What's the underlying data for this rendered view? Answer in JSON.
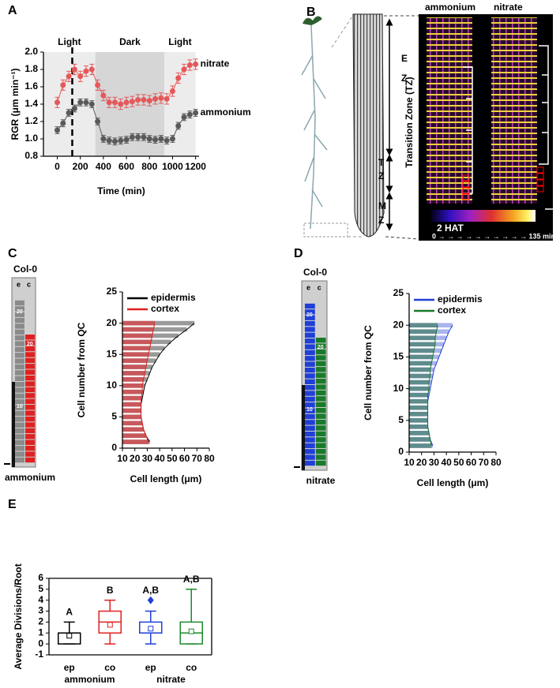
{
  "chart_data": [
    {
      "type": "line",
      "panel": "A",
      "xlabel": "Time (min)",
      "ylabel": "RGR (μm min⁻¹)",
      "xlim": [
        -120,
        1230
      ],
      "ylim": [
        0.8,
        2.0
      ],
      "xticks": [
        0,
        200,
        400,
        600,
        800,
        1000,
        1200
      ],
      "yticks": [
        0.8,
        {
          "value": 1,
          "label": "1.0"
        },
        1.2,
        1.4,
        1.6,
        1.8,
        {
          "value": 2,
          "label": "2.0"
        }
      ],
      "shading": [
        {
          "start": -120,
          "end": 330,
          "label": "Light",
          "color": "#ececec"
        },
        {
          "start": 330,
          "end": 930,
          "label": "Dark",
          "color": "#d6d6d6"
        },
        {
          "start": 930,
          "end": 1200,
          "label": "Light",
          "color": "#ececec"
        }
      ],
      "marker_x": 130,
      "x": [
        0,
        50,
        100,
        150,
        200,
        250,
        300,
        350,
        400,
        450,
        500,
        550,
        600,
        650,
        700,
        750,
        800,
        850,
        900,
        950,
        1000,
        1050,
        1100,
        1150,
        1200
      ],
      "series": [
        {
          "name": "nitrate",
          "color": "#e5585a",
          "values": [
            1.42,
            1.62,
            1.72,
            1.8,
            1.72,
            1.78,
            1.8,
            1.62,
            1.5,
            1.42,
            1.42,
            1.4,
            1.42,
            1.43,
            1.45,
            1.45,
            1.44,
            1.46,
            1.47,
            1.46,
            1.55,
            1.7,
            1.8,
            1.85,
            1.86
          ],
          "errors": [
            0.06,
            0.06,
            0.06,
            0.06,
            0.06,
            0.06,
            0.06,
            0.06,
            0.06,
            0.06,
            0.06,
            0.06,
            0.06,
            0.06,
            0.06,
            0.06,
            0.06,
            0.06,
            0.06,
            0.06,
            0.06,
            0.06,
            0.06,
            0.06,
            0.06
          ]
        },
        {
          "name": "ammonium",
          "color": "#5a5a5a",
          "values": [
            1.1,
            1.18,
            1.3,
            1.35,
            1.42,
            1.42,
            1.4,
            1.2,
            1.0,
            0.98,
            0.97,
            0.98,
            0.99,
            1.02,
            1.02,
            1.02,
            1.0,
            0.99,
            1.0,
            0.98,
            1.0,
            1.15,
            1.25,
            1.28,
            1.3
          ],
          "errors": [
            0.04,
            0.04,
            0.04,
            0.04,
            0.04,
            0.04,
            0.04,
            0.04,
            0.04,
            0.04,
            0.04,
            0.04,
            0.04,
            0.04,
            0.04,
            0.04,
            0.04,
            0.04,
            0.04,
            0.04,
            0.04,
            0.04,
            0.04,
            0.04,
            0.04
          ]
        }
      ]
    },
    {
      "type": "hbar",
      "panel": "C",
      "xlabel": "Cell length (μm)",
      "ylabel": "Cell number from QC",
      "xlim": [
        10,
        80
      ],
      "ylim": [
        0,
        25
      ],
      "xticks": [
        10,
        20,
        30,
        40,
        50,
        60,
        70,
        80
      ],
      "yticks": [
        0,
        5,
        10,
        15,
        20,
        25
      ],
      "y": [
        1,
        2,
        3,
        4,
        5,
        6,
        7,
        8,
        9,
        10,
        11,
        12,
        13,
        14,
        15,
        16,
        17,
        18,
        19,
        20
      ],
      "series": [
        {
          "name": "epidermis",
          "color": "#000000",
          "fill": "#9a9a9a",
          "values": [
            32,
            29,
            27,
            26,
            25,
            25,
            25,
            26,
            27,
            28,
            30,
            32,
            34,
            37,
            40,
            44,
            49,
            55,
            62,
            68
          ]
        },
        {
          "name": "cortex",
          "color": "#e02020",
          "fill": "#c8585c",
          "values": [
            31,
            29,
            27,
            26,
            25,
            25,
            25,
            25,
            26,
            26,
            27,
            28,
            29,
            30,
            31,
            32,
            33,
            34,
            35,
            36
          ]
        }
      ],
      "strip": {
        "genotype": "Col-0",
        "layers": [
          "e",
          "c"
        ],
        "cell_labels": [
          "20",
          "20",
          "10"
        ],
        "condition": "ammonium"
      }
    },
    {
      "type": "hbar",
      "panel": "D",
      "xlabel": "Cell length (μm)",
      "ylabel": "Cell number from QC",
      "xlim": [
        10,
        80
      ],
      "ylim": [
        0,
        25
      ],
      "xticks": [
        10,
        20,
        30,
        40,
        50,
        60,
        70,
        80
      ],
      "yticks": [
        0,
        5,
        10,
        15,
        20,
        25
      ],
      "y": [
        1,
        2,
        3,
        4,
        5,
        6,
        7,
        8,
        9,
        10,
        11,
        12,
        13,
        14,
        15,
        16,
        17,
        18,
        19,
        20
      ],
      "series": [
        {
          "name": "epidermis",
          "color": "#1f3fd6",
          "fill": "#aab4ee",
          "values": [
            29,
            27,
            26,
            25,
            25,
            25,
            25,
            25,
            26,
            27,
            28,
            29,
            30,
            32,
            34,
            36,
            38,
            40,
            42,
            45
          ]
        },
        {
          "name": "cortex",
          "color": "#1a7a2a",
          "fill": "#5f8c8c",
          "values": [
            28,
            27,
            26,
            25,
            25,
            25,
            25,
            25,
            25,
            26,
            26,
            27,
            27,
            28,
            29,
            30,
            31,
            31,
            32,
            33
          ]
        }
      ],
      "strip": {
        "genotype": "Col-0",
        "layers": [
          "e",
          "c"
        ],
        "cell_labels": [
          "20",
          "20",
          "10"
        ],
        "condition": "nitrate"
      }
    },
    {
      "type": "box",
      "panel": "E",
      "ylabel": "Average Divisions/Root",
      "ylim": [
        -1,
        6
      ],
      "yticks": [
        -1,
        0,
        1,
        2,
        3,
        4,
        5,
        6
      ],
      "categories": [
        "ep",
        "co",
        "ep",
        "co"
      ],
      "groups": [
        "ammonium",
        "nitrate"
      ],
      "boxes": [
        {
          "min": 0,
          "q1": 0,
          "median": 1,
          "q3": 1,
          "max": 2,
          "mean": 0.75,
          "outliers": [],
          "letter": "A",
          "color": "#000000"
        },
        {
          "min": 0,
          "q1": 1,
          "median": 2,
          "q3": 3,
          "max": 4,
          "mean": 1.75,
          "outliers": [],
          "letter": "B",
          "color": "#e02020"
        },
        {
          "min": 0,
          "q1": 1,
          "median": 1,
          "q3": 2,
          "max": 3,
          "mean": 1.4,
          "outliers": [
            4
          ],
          "letter": "A,B",
          "color": "#1f3fd6"
        },
        {
          "min": 0,
          "q1": 0,
          "median": 1,
          "q3": 2,
          "max": 5,
          "mean": 1.15,
          "outliers": [],
          "letter": "A,B",
          "color": "#1a8a2a"
        }
      ]
    }
  ],
  "panel_b": {
    "panel": "B",
    "images": [
      "ammonium",
      "nitrate"
    ],
    "zones": [
      "E",
      "Z",
      "T",
      "Z",
      "M",
      "Z"
    ],
    "zone_title": "Transition Zone (TZ)",
    "colorbar_title": "2 HAT",
    "colorbar_axis": "0 → → → → → → → → → → 135 min"
  }
}
